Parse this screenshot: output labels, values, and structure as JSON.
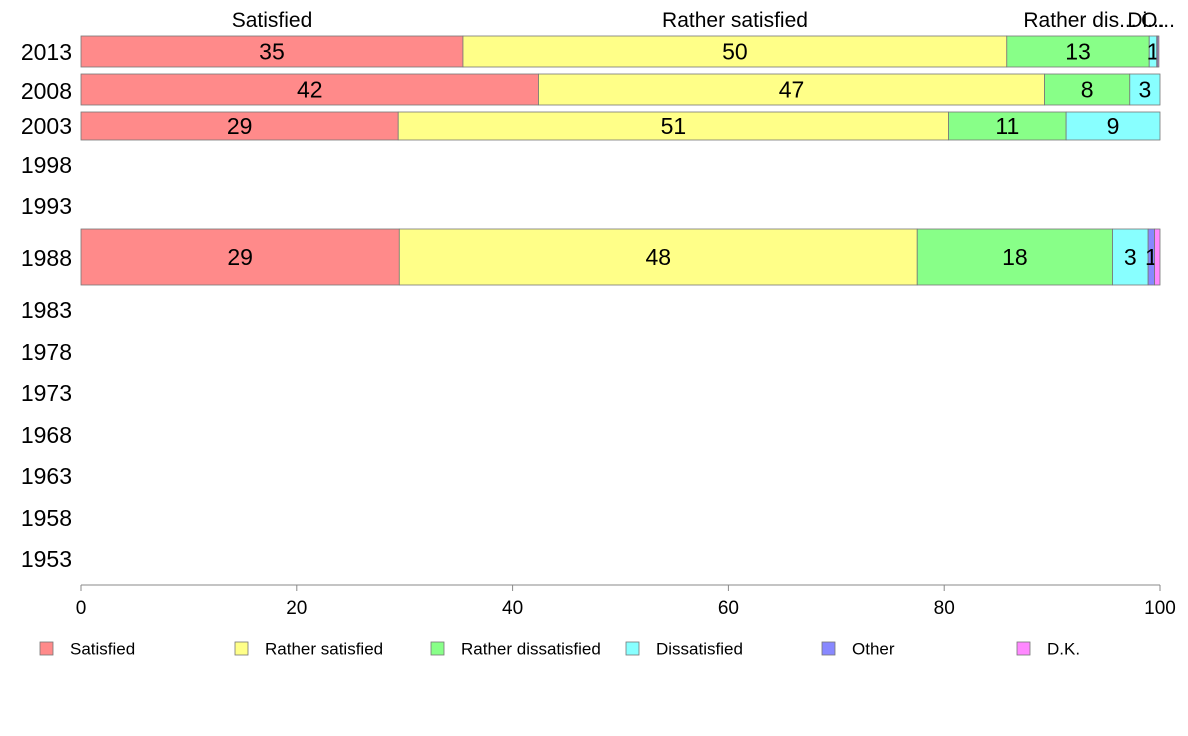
{
  "chart_data": {
    "type": "bar",
    "orientation": "horizontal",
    "stacked": true,
    "categories": [
      "2013",
      "2008",
      "2003",
      "1998",
      "1993",
      "1988",
      "1983",
      "1978",
      "1973",
      "1968",
      "1963",
      "1958",
      "1953"
    ],
    "series": [
      {
        "name": "Satisfied",
        "color": "#ff8a8a",
        "values": [
          35.4,
          42.4,
          29.4,
          null,
          null,
          29.5,
          null,
          null,
          null,
          null,
          null,
          null,
          null
        ],
        "labels": [
          "35",
          "42",
          "29",
          "",
          "",
          "29",
          "",
          "",
          "",
          "",
          "",
          "",
          ""
        ]
      },
      {
        "name": "Rather satisfied",
        "color": "#ffff88",
        "values": [
          50.4,
          46.9,
          51.0,
          null,
          null,
          48.0,
          null,
          null,
          null,
          null,
          null,
          null,
          null
        ],
        "labels": [
          "50",
          "47",
          "51",
          "",
          "",
          "48",
          "",
          "",
          "",
          "",
          "",
          "",
          ""
        ]
      },
      {
        "name": "Rather dissatisfied",
        "color": "#88ff88",
        "values": [
          13.2,
          7.9,
          10.9,
          null,
          null,
          18.1,
          null,
          null,
          null,
          null,
          null,
          null,
          null
        ],
        "labels": [
          "13",
          "8",
          "11",
          "",
          "",
          "18",
          "",
          "",
          "",
          "",
          "",
          "",
          ""
        ]
      },
      {
        "name": "Dissatisfied",
        "color": "#88ffff",
        "values": [
          0.7,
          2.8,
          8.7,
          null,
          null,
          3.3,
          null,
          null,
          null,
          null,
          null,
          null,
          null
        ],
        "labels": [
          "1",
          "3",
          "9",
          "",
          "",
          "3",
          "",
          "",
          "",
          "",
          "",
          "",
          ""
        ]
      },
      {
        "name": "Other",
        "color": "#8888ff",
        "values": [
          0.1,
          0,
          0,
          null,
          null,
          0.6,
          null,
          null,
          null,
          null,
          null,
          null,
          null
        ],
        "labels": [
          "",
          "",
          "",
          "",
          "",
          "1",
          "",
          "",
          "",
          "",
          "",
          "",
          ""
        ]
      },
      {
        "name": "D.K.",
        "color": "#ff88ff",
        "values": [
          0.1,
          0,
          0,
          null,
          null,
          0.5,
          null,
          null,
          null,
          null,
          null,
          null,
          null
        ],
        "labels": [
          "",
          "",
          "",
          "",
          "",
          "",
          "",
          "",
          "",
          "",
          "",
          "",
          ""
        ]
      }
    ],
    "top_labels": [
      "Satisfied",
      "Rather satisfied",
      "Rather dis...",
      "Di...",
      "O..."
    ],
    "x_ticks": [
      "0",
      "20",
      "40",
      "60",
      "80",
      "100"
    ],
    "xlim": [
      0,
      100
    ],
    "grid": false,
    "legend": {
      "position": "bottom",
      "entries": [
        "Satisfied",
        "Rather satisfied",
        "Rather dissatisfied",
        "Dissatisfied",
        "Other",
        "D.K."
      ]
    }
  }
}
